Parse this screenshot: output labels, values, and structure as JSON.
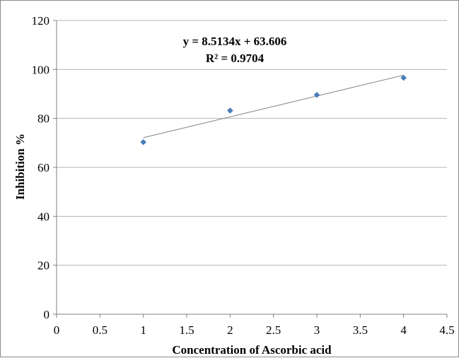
{
  "chart_data": {
    "type": "scatter",
    "title": "",
    "xlabel": "Concentration of  Ascorbic acid",
    "ylabel": "Inhibition %",
    "xlim": [
      0,
      4.5
    ],
    "ylim": [
      0,
      120
    ],
    "x_ticks": [
      0,
      0.5,
      1,
      1.5,
      2,
      2.5,
      3,
      3.5,
      4,
      4.5
    ],
    "x_tick_labels": [
      "0",
      "0.5",
      "1",
      "1.5",
      "2",
      "2.5",
      "3",
      "3.5",
      "4",
      "4.5"
    ],
    "y_ticks": [
      0,
      20,
      40,
      60,
      80,
      100,
      120
    ],
    "y_tick_labels": [
      "0",
      "20",
      "40",
      "60",
      "80",
      "100",
      "120"
    ],
    "grid": "horizontal",
    "legend": "none",
    "series": [
      {
        "x": [
          1,
          2,
          3,
          4
        ],
        "y": [
          70.3,
          83.2,
          89.6,
          96.6
        ],
        "marker": "diamond",
        "color": "#4a7ebb"
      }
    ],
    "trendline": {
      "type": "linear",
      "slope": 8.5134,
      "intercept": 63.606,
      "x_range": [
        1,
        4
      ],
      "color": "#808080"
    },
    "annotations": {
      "equation": "y = 8.5134x + 63.606",
      "r_squared": "R² = 0.9704"
    }
  }
}
